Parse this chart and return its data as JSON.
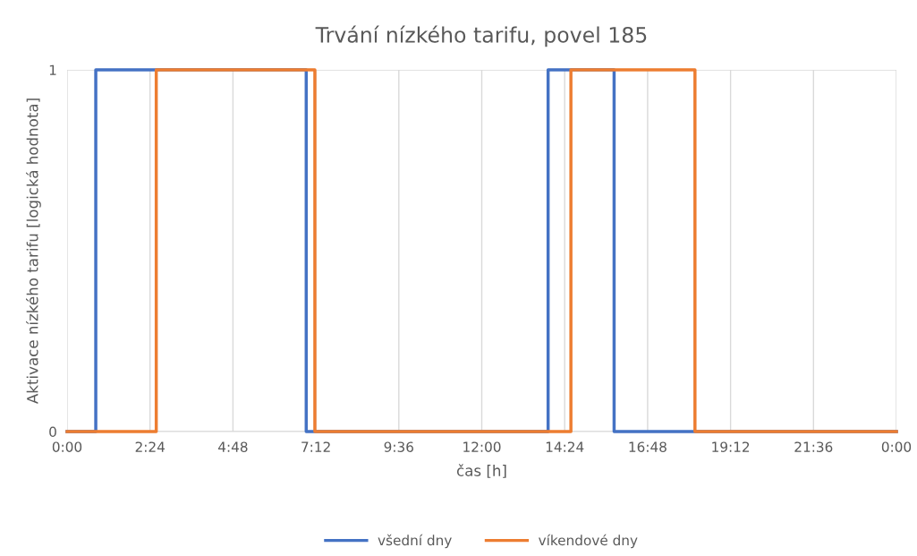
{
  "chart_data": {
    "type": "step",
    "title": "Trvání nízkého tarifu, povel 185",
    "xlabel": "čas [h]",
    "ylabel": "Aktivace nízkého tarifu [logická hodnota]",
    "series": [
      {
        "name": "všední dny",
        "color": "#4472c4",
        "x": [
          0,
          0.83,
          6.92,
          13.92,
          15.83,
          24
        ],
        "values": [
          0,
          1,
          0,
          1,
          0,
          0
        ]
      },
      {
        "name": "víkendové dny",
        "color": "#ed7d31",
        "x": [
          0,
          2.58,
          7.17,
          14.58,
          18.17,
          24
        ],
        "values": [
          0,
          1,
          0,
          1,
          0,
          0
        ]
      }
    ],
    "xlim": [
      0,
      24
    ],
    "xticks": [
      {
        "value": 0,
        "label": "0:00"
      },
      {
        "value": 2.4,
        "label": "2:24"
      },
      {
        "value": 4.8,
        "label": "4:48"
      },
      {
        "value": 7.2,
        "label": "7:12"
      },
      {
        "value": 9.6,
        "label": "9:36"
      },
      {
        "value": 12,
        "label": "12:00"
      },
      {
        "value": 14.4,
        "label": "14:24"
      },
      {
        "value": 16.8,
        "label": "16:48"
      },
      {
        "value": 19.2,
        "label": "19:12"
      },
      {
        "value": 21.6,
        "label": "21:36"
      },
      {
        "value": 24,
        "label": "0:00"
      }
    ],
    "ylim": [
      0,
      1
    ],
    "yticks": [
      0,
      1
    ],
    "grid": true,
    "legend": "bottom"
  }
}
